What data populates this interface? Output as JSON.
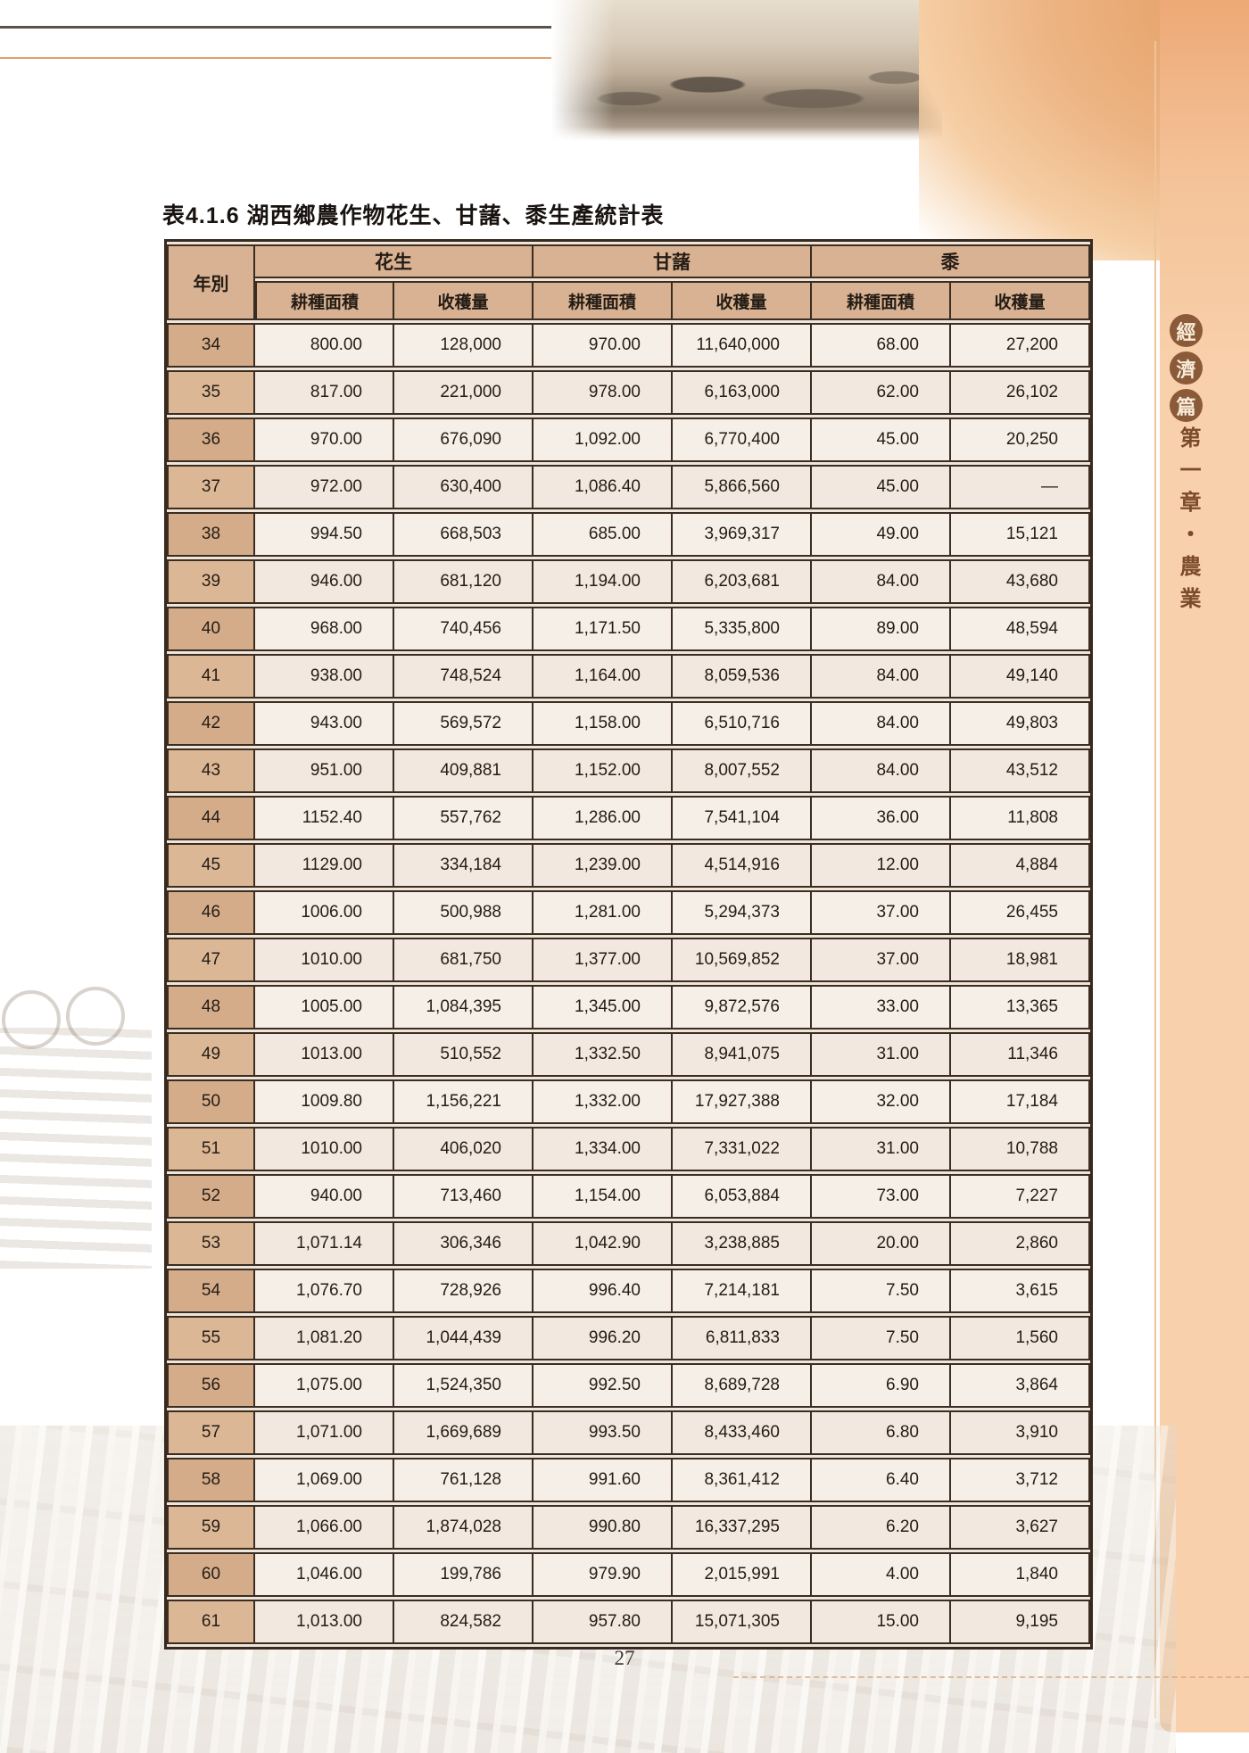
{
  "page": {
    "title": "表4.1.6 湖西鄉農作物花生、甘藷、黍生產統計表",
    "page_number": "27"
  },
  "sidebar": {
    "badge_chars": [
      "經",
      "濟",
      "篇"
    ],
    "chapter_label": "第一章・農業"
  },
  "colors": {
    "table_header_fill": "#d8b292",
    "table_border": "#3b2d21",
    "sidebar_strip": "#f8d1ac",
    "badge_circle": "#8a5a39",
    "accent_orange": "#dfa173"
  },
  "table": {
    "year_header": "年別",
    "group_headers": [
      "花生",
      "甘藷",
      "黍"
    ],
    "sub_headers": [
      "耕種面積",
      "收穫量"
    ],
    "rows": [
      {
        "year": "34",
        "values": [
          "800.00",
          "128,000",
          "970.00",
          "11,640,000",
          "68.00",
          "27,200"
        ]
      },
      {
        "year": "35",
        "values": [
          "817.00",
          "221,000",
          "978.00",
          "6,163,000",
          "62.00",
          "26,102"
        ]
      },
      {
        "year": "36",
        "values": [
          "970.00",
          "676,090",
          "1,092.00",
          "6,770,400",
          "45.00",
          "20,250"
        ]
      },
      {
        "year": "37",
        "values": [
          "972.00",
          "630,400",
          "1,086.40",
          "5,866,560",
          "45.00",
          "—"
        ]
      },
      {
        "year": "38",
        "values": [
          "994.50",
          "668,503",
          "685.00",
          "3,969,317",
          "49.00",
          "15,121"
        ]
      },
      {
        "year": "39",
        "values": [
          "946.00",
          "681,120",
          "1,194.00",
          "6,203,681",
          "84.00",
          "43,680"
        ]
      },
      {
        "year": "40",
        "values": [
          "968.00",
          "740,456",
          "1,171.50",
          "5,335,800",
          "89.00",
          "48,594"
        ]
      },
      {
        "year": "41",
        "values": [
          "938.00",
          "748,524",
          "1,164.00",
          "8,059,536",
          "84.00",
          "49,140"
        ]
      },
      {
        "year": "42",
        "values": [
          "943.00",
          "569,572",
          "1,158.00",
          "6,510,716",
          "84.00",
          "49,803"
        ]
      },
      {
        "year": "43",
        "values": [
          "951.00",
          "409,881",
          "1,152.00",
          "8,007,552",
          "84.00",
          "43,512"
        ]
      },
      {
        "year": "44",
        "values": [
          "1152.40",
          "557,762",
          "1,286.00",
          "7,541,104",
          "36.00",
          "11,808"
        ]
      },
      {
        "year": "45",
        "values": [
          "1129.00",
          "334,184",
          "1,239.00",
          "4,514,916",
          "12.00",
          "4,884"
        ]
      },
      {
        "year": "46",
        "values": [
          "1006.00",
          "500,988",
          "1,281.00",
          "5,294,373",
          "37.00",
          "26,455"
        ]
      },
      {
        "year": "47",
        "values": [
          "1010.00",
          "681,750",
          "1,377.00",
          "10,569,852",
          "37.00",
          "18,981"
        ]
      },
      {
        "year": "48",
        "values": [
          "1005.00",
          "1,084,395",
          "1,345.00",
          "9,872,576",
          "33.00",
          "13,365"
        ]
      },
      {
        "year": "49",
        "values": [
          "1013.00",
          "510,552",
          "1,332.50",
          "8,941,075",
          "31.00",
          "11,346"
        ]
      },
      {
        "year": "50",
        "values": [
          "1009.80",
          "1,156,221",
          "1,332.00",
          "17,927,388",
          "32.00",
          "17,184"
        ]
      },
      {
        "year": "51",
        "values": [
          "1010.00",
          "406,020",
          "1,334.00",
          "7,331,022",
          "31.00",
          "10,788"
        ]
      },
      {
        "year": "52",
        "values": [
          "940.00",
          "713,460",
          "1,154.00",
          "6,053,884",
          "73.00",
          "7,227"
        ]
      },
      {
        "year": "53",
        "values": [
          "1,071.14",
          "306,346",
          "1,042.90",
          "3,238,885",
          "20.00",
          "2,860"
        ]
      },
      {
        "year": "54",
        "values": [
          "1,076.70",
          "728,926",
          "996.40",
          "7,214,181",
          "7.50",
          "3,615"
        ]
      },
      {
        "year": "55",
        "values": [
          "1,081.20",
          "1,044,439",
          "996.20",
          "6,811,833",
          "7.50",
          "1,560"
        ]
      },
      {
        "year": "56",
        "values": [
          "1,075.00",
          "1,524,350",
          "992.50",
          "8,689,728",
          "6.90",
          "3,864"
        ]
      },
      {
        "year": "57",
        "values": [
          "1,071.00",
          "1,669,689",
          "993.50",
          "8,433,460",
          "6.80",
          "3,910"
        ]
      },
      {
        "year": "58",
        "values": [
          "1,069.00",
          "761,128",
          "991.60",
          "8,361,412",
          "6.40",
          "3,712"
        ]
      },
      {
        "year": "59",
        "values": [
          "1,066.00",
          "1,874,028",
          "990.80",
          "16,337,295",
          "6.20",
          "3,627"
        ]
      },
      {
        "year": "60",
        "values": [
          "1,046.00",
          "199,786",
          "979.90",
          "2,015,991",
          "4.00",
          "1,840"
        ]
      },
      {
        "year": "61",
        "values": [
          "1,013.00",
          "824,582",
          "957.80",
          "15,071,305",
          "15.00",
          "9,195"
        ]
      }
    ]
  }
}
